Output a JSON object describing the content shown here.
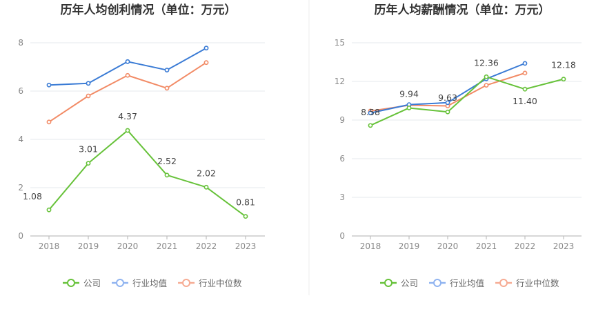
{
  "chart_data": [
    {
      "type": "line",
      "title": "历年人均创利情况（单位：万元）",
      "categories": [
        "2018",
        "2019",
        "2020",
        "2021",
        "2022",
        "2023"
      ],
      "ylim": [
        0,
        8
      ],
      "yticks": [
        0,
        2,
        4,
        6,
        8
      ],
      "grid": true,
      "legend_position": "bottom",
      "series": [
        {
          "name": "公司",
          "values": [
            1.08,
            3.01,
            4.37,
            2.52,
            2.02,
            0.81
          ],
          "color": "#67c23a",
          "labels": [
            "1.08",
            "3.01",
            "4.37",
            "2.52",
            "2.02",
            "0.81"
          ]
        },
        {
          "name": "行业均值",
          "values": [
            6.25,
            6.32,
            7.22,
            6.87,
            7.78,
            null
          ],
          "color": "#3a7bd5",
          "labels": []
        },
        {
          "name": "行业中位数",
          "values": [
            4.72,
            5.8,
            6.65,
            6.12,
            7.18,
            null
          ],
          "color": "#f28b66",
          "labels": []
        }
      ]
    },
    {
      "type": "line",
      "title": "历年人均薪酬情况（单位：万元）",
      "categories": [
        "2018",
        "2019",
        "2020",
        "2021",
        "2022",
        "2023"
      ],
      "ylim": [
        0,
        15
      ],
      "yticks": [
        0,
        3,
        6,
        9,
        12,
        15
      ],
      "grid": true,
      "legend_position": "bottom",
      "series": [
        {
          "name": "公司",
          "values": [
            8.58,
            9.94,
            9.63,
            12.36,
            11.4,
            12.18
          ],
          "color": "#67c23a",
          "labels": [
            "8.58",
            "9.94",
            "9.63",
            "12.36",
            "11.40",
            "12.18"
          ]
        },
        {
          "name": "行业均值",
          "values": [
            9.55,
            10.2,
            10.35,
            12.2,
            13.4,
            null
          ],
          "color": "#3a7bd5",
          "labels": []
        },
        {
          "name": "行业中位数",
          "values": [
            9.7,
            10.15,
            10.1,
            11.7,
            12.65,
            null
          ],
          "color": "#f28b66",
          "labels": []
        }
      ]
    }
  ],
  "legend": {
    "items": [
      {
        "label": "公司",
        "color": "#67c23a"
      },
      {
        "label": "行业均值",
        "color": "#8fb3f0"
      },
      {
        "label": "行业中位数",
        "color": "#f6ab93"
      }
    ]
  }
}
